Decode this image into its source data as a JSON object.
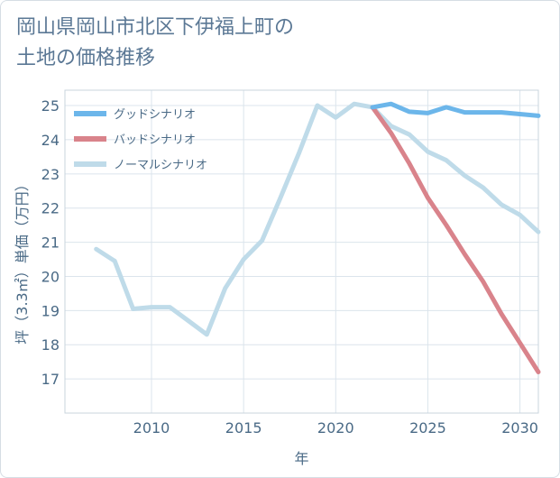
{
  "page": {
    "title_line1": "岡山県岡山市北区下伊福上町の",
    "title_line2": "土地の価格推移"
  },
  "colors": {
    "good": "#6cb6ea",
    "bad": "#d9838b",
    "normal": "#bfdbe9",
    "grid": "#dbe4ec",
    "axis_text": "#4a6a86"
  },
  "chart_data": {
    "type": "line",
    "xlabel": "年",
    "ylabel": "坪（3.3㎡）単価（万円）",
    "xlim": [
      2005.3,
      2031
    ],
    "ylim": [
      16,
      25.45
    ],
    "xticks": [
      2010,
      2015,
      2020,
      2025,
      2030
    ],
    "yticks": [
      17,
      18,
      19,
      20,
      21,
      22,
      23,
      24,
      25
    ],
    "legend_position": "top-left",
    "series": [
      {
        "key": "good",
        "name": "グッドシナリオ",
        "x": [
          2022,
          2023,
          2024,
          2025,
          2026,
          2027,
          2028,
          2029,
          2030,
          2031
        ],
        "y": [
          24.95,
          25.05,
          24.82,
          24.78,
          24.95,
          24.8,
          24.8,
          24.8,
          24.75,
          24.7
        ]
      },
      {
        "key": "bad",
        "name": "バッドシナリオ",
        "x": [
          2022,
          2023,
          2024,
          2025,
          2026,
          2027,
          2028,
          2029,
          2030,
          2031
        ],
        "y": [
          24.95,
          24.2,
          23.3,
          22.3,
          21.5,
          20.65,
          19.85,
          18.9,
          18.05,
          17.2
        ]
      },
      {
        "key": "normal",
        "name": "ノーマルシナリオ",
        "x": [
          2007,
          2008,
          2009,
          2010,
          2011,
          2012,
          2013,
          2014,
          2015,
          2016,
          2017,
          2018,
          2019,
          2020,
          2021,
          2022,
          2023,
          2024,
          2025,
          2026,
          2027,
          2028,
          2029,
          2030,
          2031
        ],
        "y": [
          20.8,
          20.45,
          19.05,
          19.1,
          19.1,
          18.7,
          18.3,
          19.65,
          20.5,
          21.05,
          22.3,
          23.6,
          25.0,
          24.65,
          25.05,
          24.95,
          24.4,
          24.15,
          23.65,
          23.4,
          22.95,
          22.6,
          22.1,
          21.8,
          21.3
        ]
      }
    ]
  }
}
